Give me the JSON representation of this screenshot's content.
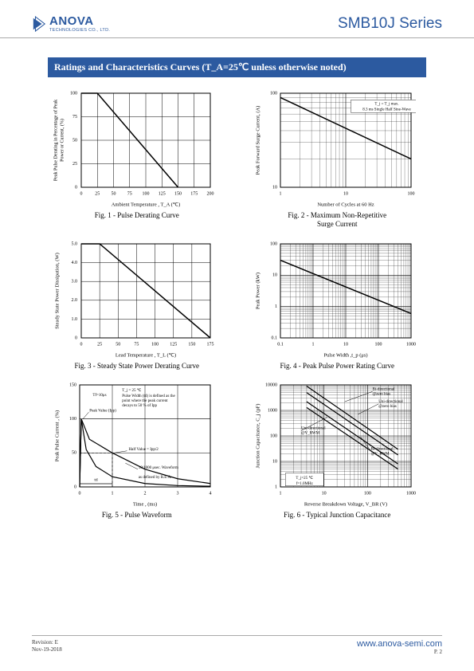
{
  "header": {
    "logo_text": "ANOVA",
    "logo_sub": "TECHNOLOGIES CO., LTD.",
    "series": "SMB10J Series"
  },
  "section_title": "Ratings and Characteristics Curves (T_A=25℃ unless otherwise noted)",
  "footer": {
    "revision": "Revision: E",
    "date": "Nov-19-2018",
    "url": "www.anova-semi.com",
    "page": "P. 2"
  },
  "fig1": {
    "caption": "Fig. 1 - Pulse Derating Curve",
    "xlabel": "Ambient Temperature , T_A  (℃)",
    "ylabel": "Peak Pulse Derating in Percentage of  Peak Power or Current, (%)",
    "xlim": [
      0,
      200
    ],
    "xtick_step": 25,
    "ylim": [
      0,
      100
    ],
    "ytick_step": 25,
    "line": [
      [
        0,
        100
      ],
      [
        25,
        100
      ],
      [
        150,
        0
      ]
    ],
    "line_color": "#000000",
    "line_width": 1.5,
    "grid_color": "#000000"
  },
  "fig2": {
    "caption": "Fig. 2 - Maximum Non-Repetitive",
    "caption2": "Surge Current",
    "xlabel": "Number of Cycles at 60 Hz",
    "ylabel": "Peak Forward Surge Current, (A)",
    "xlim": [
      1,
      100
    ],
    "xlog": true,
    "ylim": [
      10,
      100
    ],
    "ylog": true,
    "line": [
      [
        1,
        90
      ],
      [
        100,
        20
      ]
    ],
    "annot": [
      "T_j = T_j max.",
      "8.3 ms Single Half Sine-Wave"
    ],
    "line_color": "#000000",
    "line_width": 1.5,
    "grid_color": "#000000"
  },
  "fig3": {
    "caption": "Fig. 3 - Steady State Power Derating Curve",
    "xlabel": "Lead Temperature , T_L  (℃)",
    "ylabel": "Steady State Power Dissipation, (W)",
    "xlim": [
      0,
      175
    ],
    "xtick_step": 25,
    "ylim": [
      0,
      5
    ],
    "ytick_step": 1,
    "ytick_labels": [
      "0",
      "1.0",
      "2.0",
      "3.0",
      "4.0",
      "5.0"
    ],
    "line": [
      [
        0,
        5
      ],
      [
        25,
        5
      ],
      [
        175,
        0
      ]
    ],
    "line_color": "#000000",
    "line_width": 1.5,
    "grid_color": "#000000"
  },
  "fig4": {
    "caption": "Fig. 4 - Peak Pulse Power Rating Curve",
    "xlabel": "Pulse Width ,t_p (μs)",
    "ylabel": "Peak Power (kW)",
    "xlim": [
      0.1,
      1000
    ],
    "xlog": true,
    "ylim": [
      0.1,
      100
    ],
    "ylog": true,
    "line": [
      [
        0.1,
        30
      ],
      [
        1000,
        0.6
      ]
    ],
    "line_color": "#000000",
    "line_width": 1.5,
    "grid_color": "#000000"
  },
  "fig5": {
    "caption": "Fig. 5 - Pulse Waveform",
    "xlabel": "Time , (ms)",
    "ylabel": "Peak Pulse Current , (%)",
    "xlim": [
      0,
      4
    ],
    "xtick_step": 1,
    "ylim": [
      0,
      150
    ],
    "ytick_step": 50,
    "ytick_extra": 100,
    "annot_tf": "Tf=10μs",
    "annot_peak": "Peak Value (Ipp)",
    "annot_tj": "T_j = 25 ℃",
    "annot_pw": "Pulse Width (td) is defined as the point where the peak current decays to 50 % of Ipp",
    "annot_half": "Half Value = Ipp/2",
    "annot_wave": "10/1000 μsec. Waveform as defined by R.E.A.",
    "annot_td": "td",
    "rise": [
      [
        0,
        0
      ],
      [
        0.05,
        100
      ]
    ],
    "decay1": [
      [
        0.05,
        100
      ],
      [
        0.3,
        70
      ],
      [
        1,
        50
      ],
      [
        2,
        26
      ],
      [
        3,
        12
      ],
      [
        4,
        5
      ]
    ],
    "decay2": [
      [
        0.05,
        100
      ],
      [
        0.2,
        55
      ],
      [
        0.5,
        30
      ],
      [
        1,
        15
      ],
      [
        2,
        5
      ],
      [
        3,
        2
      ],
      [
        4,
        1
      ]
    ],
    "line_color": "#000000",
    "line_width": 1.2,
    "grid_color": "#000000"
  },
  "fig6": {
    "caption": "Fig. 6 - Typical Junction Capacitance",
    "xlabel": "Reverse  Breakdown Voltage, V_BR  (V)",
    "ylabel": "Junction Capacitance, C_j  (pF)",
    "xlim": [
      1,
      1000
    ],
    "xlog": true,
    "ylim": [
      1,
      10000
    ],
    "ylog": true,
    "labels": [
      "Bi-directional @zero bias",
      "Uni-directional @zero bias",
      "Uni-directional @V_RWM",
      "Bi-directional @V_RWM"
    ],
    "annot_cond": [
      "T_j=25 ℃",
      "f=1.0MHz"
    ],
    "lines": [
      [
        [
          4,
          9000
        ],
        [
          500,
          30
        ]
      ],
      [
        [
          4,
          5000
        ],
        [
          500,
          18
        ]
      ],
      [
        [
          4,
          2200
        ],
        [
          500,
          8
        ]
      ],
      [
        [
          4,
          1300
        ],
        [
          500,
          5
        ]
      ]
    ],
    "line_color": "#000000",
    "line_width": 1.2,
    "grid_color": "#000000"
  }
}
